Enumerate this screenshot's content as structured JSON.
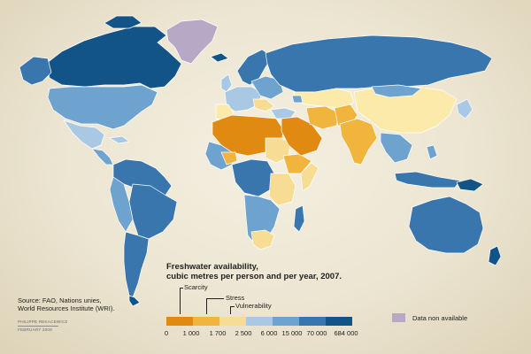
{
  "colors": {
    "scarcity": "#e08a12",
    "stress": "#f1b53e",
    "vulnerability": "#f7dd94",
    "c1700_2500": "#fbeaa9",
    "c2500_6000": "#a9c8e4",
    "c6000_15000": "#6ea2cf",
    "c15000_70000": "#3a76ae",
    "c70000_684000": "#125487",
    "no_data": "#b5a9c6",
    "ocean": "#ece5d1"
  },
  "legend": {
    "title_line1": "Freshwater availability,",
    "title_line2": "cubic metres per person and per year, 2007.",
    "scarcity_label": "Scarcity",
    "stress_label": "Stress",
    "vulnerability_label": "Vulnerability",
    "ticks": [
      "0",
      "1 000",
      "1 700",
      "2 500",
      "6 000",
      "15 000",
      "70 000",
      "684 000"
    ],
    "no_data_label": "Data non available"
  },
  "source": {
    "line1": "Source: FAO, Nations unies,",
    "line2": "World Resources Institute (WRI)."
  },
  "credit": {
    "author": "PHILIPPE REKACEWICZ",
    "date": "FEBRUARY 2008"
  }
}
